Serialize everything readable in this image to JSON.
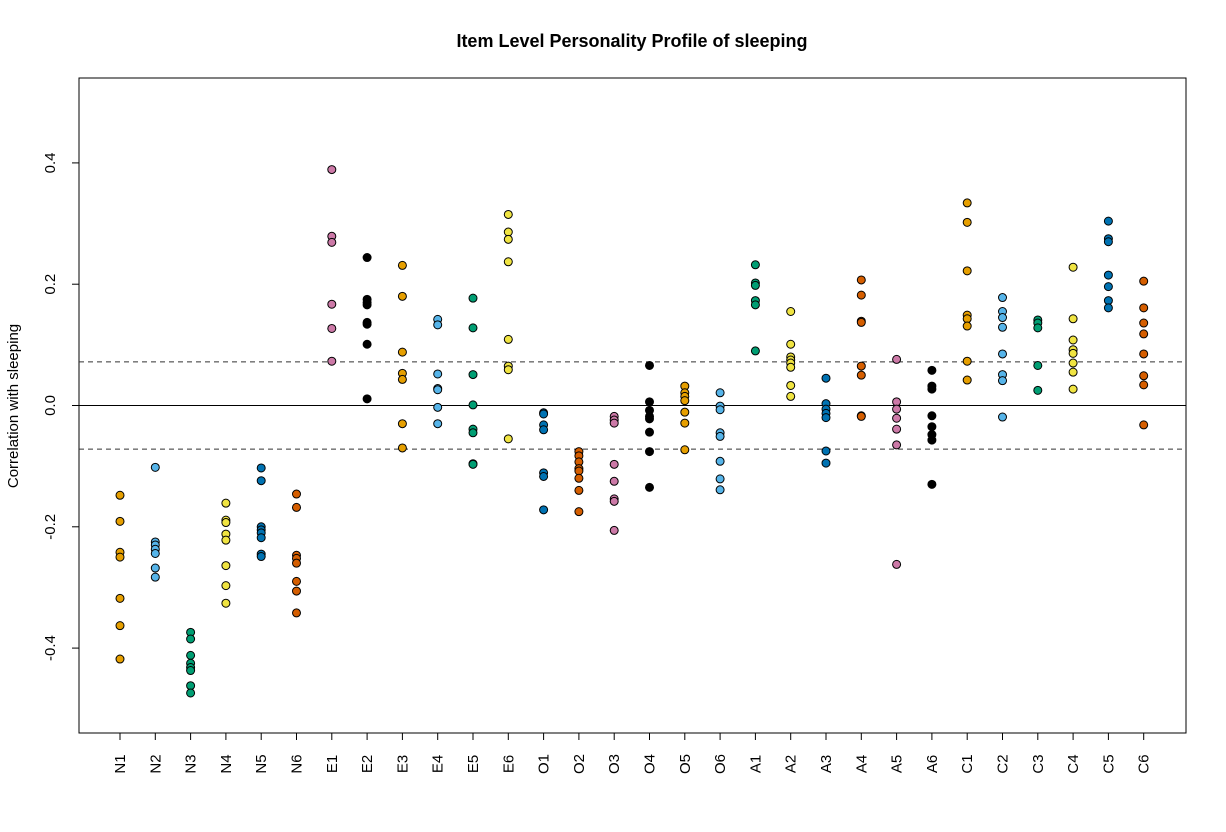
{
  "chart_data": {
    "type": "scatter",
    "title": "Item Level Personality Profile of sleeping",
    "xlabel": "",
    "ylabel": "Correlation with sleeping",
    "ylim": [
      -0.54,
      0.54
    ],
    "yticks": [
      "-0.4",
      "-0.2",
      "0.0",
      "0.2",
      "0.4"
    ],
    "ytick_values": [
      -0.4,
      -0.2,
      0.0,
      0.2,
      0.4
    ],
    "reference_lines": [
      {
        "y": 0.0,
        "style": "solid"
      },
      {
        "y": 0.072,
        "style": "dashed"
      },
      {
        "y": -0.072,
        "style": "dashed"
      }
    ],
    "grid": false,
    "categories": [
      "N1",
      "N2",
      "N3",
      "N4",
      "N5",
      "N6",
      "E1",
      "E2",
      "E3",
      "E4",
      "E5",
      "E6",
      "O1",
      "O2",
      "O3",
      "O4",
      "O5",
      "O6",
      "A1",
      "A2",
      "A3",
      "A4",
      "A5",
      "A6",
      "C1",
      "C2",
      "C3",
      "C4",
      "C5",
      "C6"
    ],
    "colors": [
      "#E69F00",
      "#56B4E9",
      "#009E73",
      "#F0E442",
      "#0072B2",
      "#D55E00",
      "#CC79A7",
      "#000000",
      "#E69F00",
      "#56B4E9",
      "#009E73",
      "#F0E442",
      "#0072B2",
      "#D55E00",
      "#CC79A7",
      "#000000",
      "#E69F00",
      "#56B4E9",
      "#009E73",
      "#F0E442",
      "#0072B2",
      "#D55E00",
      "#CC79A7",
      "#000000",
      "#E69F00",
      "#56B4E9",
      "#009E73",
      "#F0E442",
      "#0072B2",
      "#D55E00"
    ],
    "values": [
      [
        -0.148,
        -0.191,
        -0.242,
        -0.25,
        -0.318,
        -0.363,
        -0.418
      ],
      [
        -0.102,
        -0.225,
        -0.23,
        -0.237,
        -0.244,
        -0.268,
        -0.283
      ],
      [
        -0.374,
        -0.385,
        -0.412,
        -0.425,
        -0.432,
        -0.437,
        -0.462,
        -0.474
      ],
      [
        -0.161,
        -0.189,
        -0.193,
        -0.212,
        -0.222,
        -0.264,
        -0.297,
        -0.326
      ],
      [
        -0.103,
        -0.124,
        -0.2,
        -0.205,
        -0.21,
        -0.218,
        -0.245,
        -0.249
      ],
      [
        -0.146,
        -0.168,
        -0.247,
        -0.252,
        -0.26,
        -0.29,
        -0.306,
        -0.342
      ],
      [
        0.389,
        0.279,
        0.269,
        0.167,
        0.127,
        0.073
      ],
      [
        0.244,
        0.175,
        0.17,
        0.166,
        0.137,
        0.134,
        0.101,
        0.011
      ],
      [
        0.231,
        0.18,
        0.088,
        0.053,
        0.043,
        -0.03,
        -0.07
      ],
      [
        0.142,
        0.133,
        0.052,
        0.028,
        0.026,
        -0.003,
        -0.03
      ],
      [
        0.177,
        0.128,
        0.051,
        0.001,
        -0.039,
        -0.045,
        -0.096,
        -0.097
      ],
      [
        0.315,
        0.286,
        0.274,
        0.237,
        0.109,
        0.065,
        0.059,
        -0.055
      ],
      [
        -0.012,
        -0.014,
        -0.032,
        -0.04,
        -0.111,
        -0.117,
        -0.172
      ],
      [
        -0.076,
        -0.083,
        -0.093,
        -0.104,
        -0.108,
        -0.12,
        -0.14,
        -0.175
      ],
      [
        -0.018,
        -0.024,
        -0.029,
        -0.097,
        -0.125,
        -0.154,
        -0.158,
        -0.206
      ],
      [
        0.066,
        0.006,
        -0.008,
        -0.018,
        -0.022,
        -0.044,
        -0.076,
        -0.135
      ],
      [
        0.032,
        0.021,
        0.015,
        0.008,
        -0.011,
        -0.029,
        -0.073
      ],
      [
        0.021,
        -0.001,
        -0.007,
        -0.045,
        -0.051,
        -0.092,
        -0.121,
        -0.139
      ],
      [
        0.232,
        0.202,
        0.198,
        0.173,
        0.166,
        0.09
      ],
      [
        0.155,
        0.101,
        0.08,
        0.075,
        0.07,
        0.063,
        0.033,
        0.015
      ],
      [
        0.045,
        0.003,
        -0.006,
        -0.013,
        -0.02,
        -0.075,
        -0.095
      ],
      [
        0.207,
        0.182,
        0.139,
        0.137,
        0.065,
        0.05,
        -0.017,
        -0.018
      ],
      [
        0.076,
        0.006,
        -0.006,
        -0.021,
        -0.039,
        -0.065,
        -0.262
      ],
      [
        0.058,
        0.032,
        0.027,
        -0.017,
        -0.035,
        -0.048,
        -0.057,
        -0.13
      ],
      [
        0.334,
        0.302,
        0.222,
        0.149,
        0.143,
        0.131,
        0.073,
        0.042
      ],
      [
        0.178,
        0.155,
        0.145,
        0.129,
        0.085,
        0.051,
        0.041,
        -0.019
      ],
      [
        0.141,
        0.136,
        0.128,
        0.066,
        0.025
      ],
      [
        0.228,
        0.143,
        0.108,
        0.092,
        0.086,
        0.07,
        0.055,
        0.027
      ],
      [
        0.304,
        0.275,
        0.27,
        0.215,
        0.196,
        0.173,
        0.161
      ],
      [
        0.205,
        0.161,
        0.136,
        0.118,
        0.085,
        0.049,
        0.034,
        -0.032
      ]
    ]
  }
}
